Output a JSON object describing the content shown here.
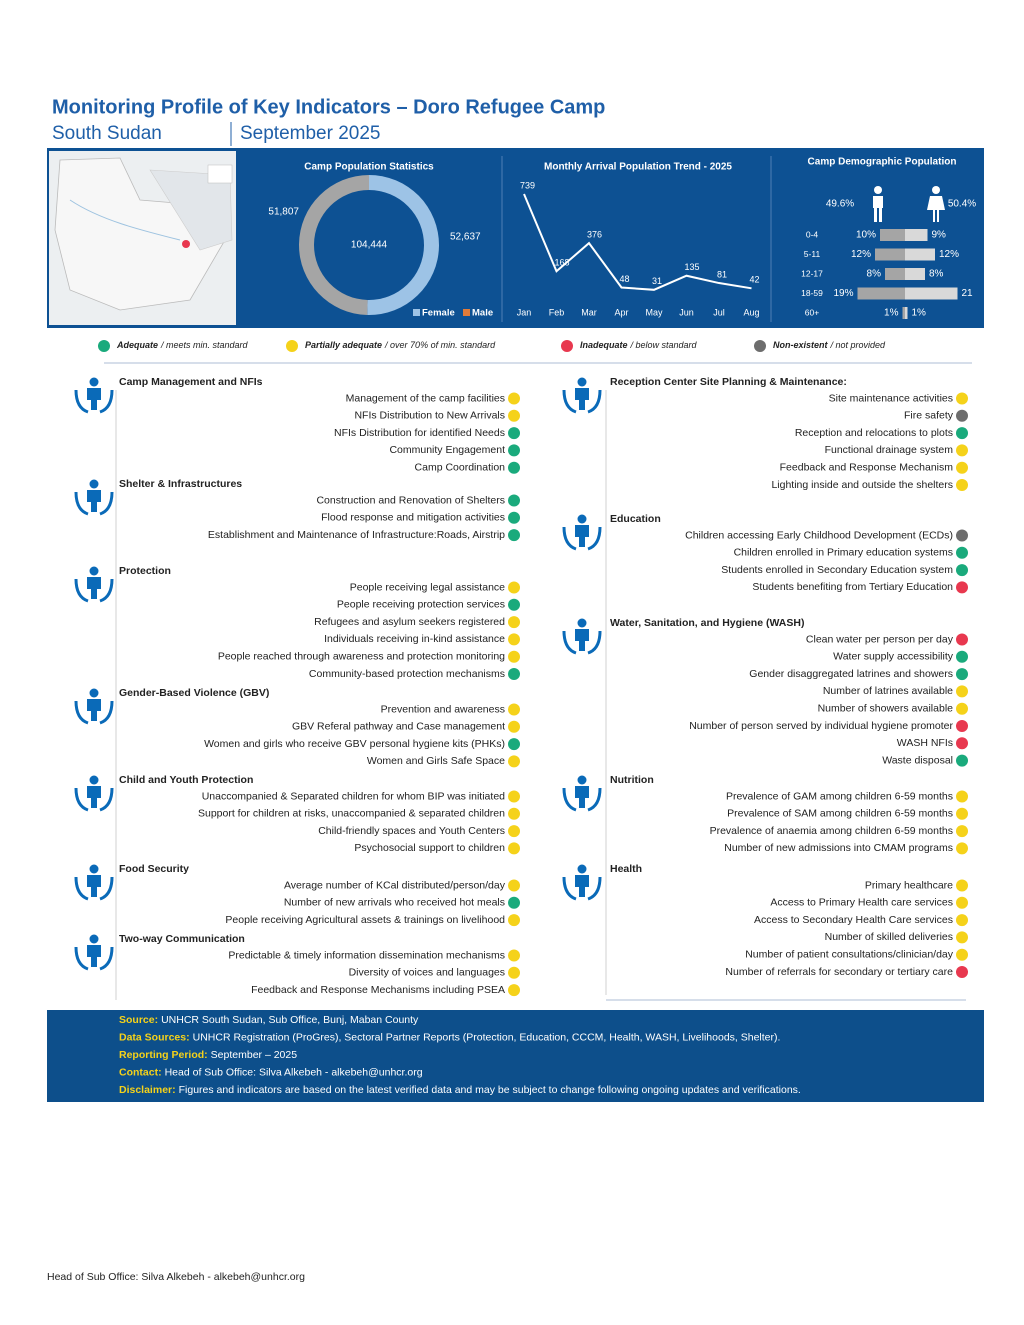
{
  "header": {
    "title": "Monitoring Profile of Key Indicators – Doro Refugee Camp",
    "country": "South Sudan",
    "period": "September 2025"
  },
  "chart_data": [
    {
      "type": "pie",
      "title": "Camp Population Statistics",
      "categories": [
        "Female",
        "Male"
      ],
      "values": [
        52637,
        51807
      ],
      "value_labels": [
        "52,637",
        "51,807"
      ],
      "colors": [
        "#9dc3e6",
        "#a5a5a5"
      ],
      "total": {
        "value": 104444,
        "label": "104,444"
      }
    },
    {
      "type": "line",
      "title": "Monthly Arrival Population Trend - 2025",
      "categories": [
        "Jan",
        "Feb",
        "Mar",
        "Apr",
        "May",
        "Jun",
        "Jul",
        "Aug"
      ],
      "values": [
        739,
        168,
        376,
        48,
        31,
        135,
        81,
        42
      ],
      "color": "#ffffff"
    },
    {
      "type": "pyramid",
      "title": "Camp Demographic Population",
      "categories": [
        "0-4",
        "5-11",
        "12-17",
        "18-59",
        "60+"
      ],
      "series": [
        {
          "color": "#a5a5a5",
          "share": {
            "value": 49.6,
            "label": "49.6%"
          },
          "values": [
            10,
            12,
            8,
            19,
            1
          ],
          "value_labels": [
            "10%",
            "12%",
            "8%",
            "19%",
            "1%"
          ]
        },
        {
          "color": "#d9d9d9",
          "share": {
            "value": 50.4,
            "label": "50.4%"
          },
          "values": [
            9,
            12,
            8,
            21,
            1
          ],
          "value_labels": [
            "9%",
            "12%",
            "8%",
            "21",
            "1%"
          ]
        }
      ]
    }
  ],
  "status_legend": [
    {
      "label": "Adequate",
      "note": "/ meets min. standard",
      "color": "#1aaa7c"
    },
    {
      "label": "Partially adequate",
      "note": "/ over 70% of min. standard",
      "color": "#f5d21a"
    },
    {
      "label": "Inadequate",
      "note": "/ below standard",
      "color": "#e8384f"
    },
    {
      "label": "Non-existent",
      "note": "/ not provided",
      "color": "#6d6d6d"
    }
  ],
  "sections": {
    "left": [
      {
        "title": "Camp Management and NFIs",
        "items": [
          {
            "text": "Management of the camp facilities",
            "color": "#f5d21a"
          },
          {
            "text": "NFIs Distribution to New Arrivals",
            "color": "#f5d21a"
          },
          {
            "text": "NFIs Distribution for identified Needs",
            "color": "#1aaa7c"
          },
          {
            "text": "Community Engagement",
            "color": "#1aaa7c"
          },
          {
            "text": "Camp Coordination",
            "color": "#1aaa7c"
          }
        ]
      },
      {
        "title": "Shelter & Infrastructures",
        "items": [
          {
            "text": "Construction and Renovation of Shelters",
            "color": "#1aaa7c"
          },
          {
            "text": "Flood response and mitigation activities",
            "color": "#1aaa7c"
          },
          {
            "text": "Establishment and Maintenance of Infrastructure:Roads, Airstrip",
            "color": "#1aaa7c"
          }
        ]
      },
      {
        "title": "Protection",
        "items": [
          {
            "text": "People receiving legal assistance",
            "color": "#f5d21a"
          },
          {
            "text": "People receiving protection services",
            "color": "#1aaa7c"
          },
          {
            "text": "Refugees and asylum seekers registered",
            "color": "#f5d21a"
          },
          {
            "text": "Individuals receiving in-kind assistance",
            "color": "#f5d21a"
          },
          {
            "text": "People reached through awareness and protection monitoring",
            "color": "#f5d21a"
          },
          {
            "text": "Community-based protection mechanisms",
            "color": "#1aaa7c"
          }
        ]
      },
      {
        "title": "Gender-Based Violence (GBV)",
        "items": [
          {
            "text": "Prevention and awareness",
            "color": "#f5d21a"
          },
          {
            "text": "GBV Referal pathway and Case management",
            "color": "#f5d21a"
          },
          {
            "text": "Women and girls who receive GBV personal hygiene kits (PHKs)",
            "color": "#1aaa7c"
          },
          {
            "text": "Women and Girls Safe Space",
            "color": "#f5d21a"
          }
        ]
      },
      {
        "title": "Child and Youth Protection",
        "items": [
          {
            "text": "Unaccompanied & Separated children for whom BIP was initiated",
            "color": "#f5d21a"
          },
          {
            "text": "Support for children at risks, unaccompanied & separated children",
            "color": "#f5d21a"
          },
          {
            "text": "Child-friendly spaces and Youth Centers",
            "color": "#f5d21a"
          },
          {
            "text": "Psychosocial support to children",
            "color": "#f5d21a"
          }
        ]
      },
      {
        "title": "Food Security",
        "items": [
          {
            "text": "Average number of KCal distributed/person/day",
            "color": "#f5d21a"
          },
          {
            "text": "Number of new arrivals who received hot meals",
            "color": "#1aaa7c"
          },
          {
            "text": "People receiving Agricultural assets & trainings on livelihood",
            "color": "#f5d21a"
          }
        ]
      },
      {
        "title": "Two-way Communication",
        "items": [
          {
            "text": "Predictable & timely information dissemination mechanisms",
            "color": "#f5d21a"
          },
          {
            "text": "Diversity of voices and languages",
            "color": "#f5d21a"
          },
          {
            "text": "Feedback and Response Mechanisms including PSEA",
            "color": "#f5d21a"
          }
        ]
      }
    ],
    "right": [
      {
        "title": "Reception Center Site Planning & Maintenance:",
        "items": [
          {
            "text": "Site maintenance activities",
            "color": "#f5d21a"
          },
          {
            "text": "Fire safety",
            "color": "#6d6d6d"
          },
          {
            "text": "Reception and relocations to plots",
            "color": "#1aaa7c"
          },
          {
            "text": "Functional drainage system",
            "color": "#f5d21a"
          },
          {
            "text": "Feedback and Response Mechanism",
            "color": "#f5d21a"
          },
          {
            "text": "Lighting inside and outside the shelters",
            "color": "#f5d21a"
          }
        ]
      },
      {
        "title": "Education",
        "items": [
          {
            "text": "Children accessing Early Childhood Development (ECDs)",
            "color": "#6d6d6d"
          },
          {
            "text": "Children enrolled in Primary education systems",
            "color": "#1aaa7c"
          },
          {
            "text": "Students enrolled in Secondary Education system",
            "color": "#1aaa7c"
          },
          {
            "text": "Students benefiting from Tertiary Education",
            "color": "#e8384f"
          }
        ]
      },
      {
        "title": "Water, Sanitation, and Hygiene (WASH)",
        "items": [
          {
            "text": "Clean water per person per day",
            "color": "#e8384f"
          },
          {
            "text": "Water supply accessibility",
            "color": "#1aaa7c"
          },
          {
            "text": "Gender disaggregated latrines and showers",
            "color": "#1aaa7c"
          },
          {
            "text": "Number of latrines available",
            "color": "#f5d21a"
          },
          {
            "text": "Number of showers available",
            "color": "#f5d21a"
          },
          {
            "text": "Number of person served by individual hygiene promoter",
            "color": "#e8384f"
          },
          {
            "text": "WASH NFIs",
            "color": "#e8384f"
          },
          {
            "text": "Waste disposal",
            "color": "#1aaa7c"
          }
        ]
      },
      {
        "title": "Nutrition",
        "items": [
          {
            "text": "Prevalence of GAM among children 6-59 months",
            "color": "#f5d21a"
          },
          {
            "text": "Prevalence of SAM among children 6-59 months",
            "color": "#f5d21a"
          },
          {
            "text": "Prevalence of anaemia among children 6-59 months",
            "color": "#f5d21a"
          },
          {
            "text": "Number of new admissions into CMAM programs",
            "color": "#f5d21a"
          }
        ]
      },
      {
        "title": "Health",
        "items": [
          {
            "text": "Primary healthcare",
            "color": "#f5d21a"
          },
          {
            "text": "Access to Primary Health care services",
            "color": "#f5d21a"
          },
          {
            "text": "Access to Secondary Health Care services",
            "color": "#f5d21a"
          },
          {
            "text": "Number of skilled deliveries",
            "color": "#f5d21a"
          },
          {
            "text": "Number of patient consultations/clinician/day",
            "color": "#f5d21a"
          },
          {
            "text": "Number of referrals for secondary or tertiary care",
            "color": "#e8384f"
          }
        ]
      }
    ]
  },
  "footer": [
    {
      "label": "Source:",
      "text": "UNHCR South Sudan, Sub Office, Bunj, Maban County"
    },
    {
      "label": "Data Sources:",
      "text": "UNHCR Registration (ProGres), Sectoral Partner Reports (Protection, Education, CCCM, Health, WASH, Livelihoods, Shelter)."
    },
    {
      "label": "Reporting Period:",
      "text": "September – 2025"
    },
    {
      "label": "Contact:",
      "text": "Head of Sub Office: Silva Alkebeh - alkebeh@unhcr.org"
    },
    {
      "label": "Disclaimer:",
      "text": "Figures and indicators are based on the latest verified data and may be subject to change following ongoing updates and verifications."
    }
  ],
  "page_footer": "Head of Sub Office: Silva Alkebeh - alkebeh@unhcr.org"
}
